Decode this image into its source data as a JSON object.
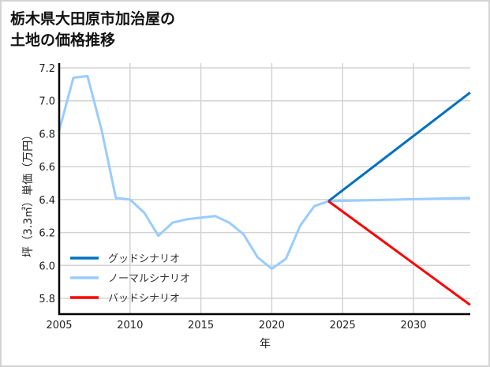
{
  "title": "栃木県大田原市加治屋の\n土地の価格推移",
  "chart_data": {
    "type": "line",
    "title": "栃木県大田原市加治屋の土地の価格推移",
    "xlabel": "年",
    "ylabel": "坪（3.3㎡）単価（万円）",
    "xlim": [
      2005,
      2034
    ],
    "ylim": [
      5.7,
      7.22
    ],
    "x_ticks": [
      2005,
      2010,
      2015,
      2020,
      2025,
      2030
    ],
    "y_ticks": [
      5.8,
      6.0,
      6.2,
      6.4,
      6.6,
      6.8,
      7.0,
      7.2
    ],
    "grid": true,
    "legend_position": "lower left",
    "series": [
      {
        "name": "グッドシナリオ",
        "color": "#0070c0",
        "x": [
          2024,
          2034
        ],
        "values": [
          6.39,
          7.05
        ]
      },
      {
        "name": "ノーマルシナリオ",
        "color": "#99ccff",
        "x": [
          2005,
          2006,
          2007,
          2008,
          2009,
          2010,
          2011,
          2012,
          2013,
          2014,
          2015,
          2016,
          2017,
          2018,
          2019,
          2020,
          2021,
          2022,
          2023,
          2024,
          2034
        ],
        "values": [
          6.82,
          7.14,
          7.15,
          6.82,
          6.41,
          6.4,
          6.32,
          6.18,
          6.26,
          6.28,
          6.29,
          6.3,
          6.26,
          6.19,
          6.05,
          5.98,
          6.04,
          6.24,
          6.36,
          6.39,
          6.41
        ]
      },
      {
        "name": "バッドシナリオ",
        "color": "#ff0000",
        "x": [
          2024,
          2034
        ],
        "values": [
          6.39,
          5.76
        ]
      }
    ]
  }
}
